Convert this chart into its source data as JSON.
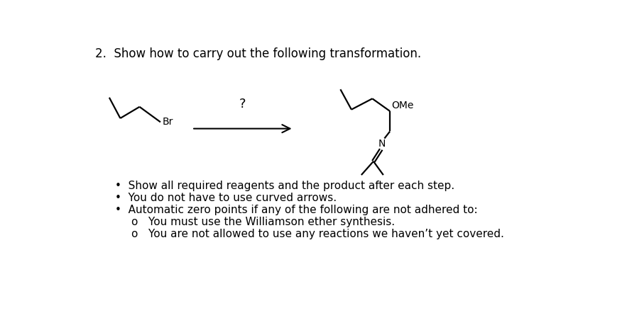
{
  "title": "2.  Show how to carry out the following transformation.",
  "title_fontsize": 12,
  "title_fontweight": "normal",
  "question_mark": "?",
  "bullet_points": [
    "Show all required reagents and the product after each step.",
    "You do not have to use curved arrows.",
    "Automatic zero points if any of the following are not adhered to:"
  ],
  "sub_bullets": [
    "You must use the Williamson ether synthesis.",
    "You are not allowed to use any reactions we haven’t yet covered."
  ],
  "fontsize_bullets": 11,
  "bg_color": "#ffffff"
}
